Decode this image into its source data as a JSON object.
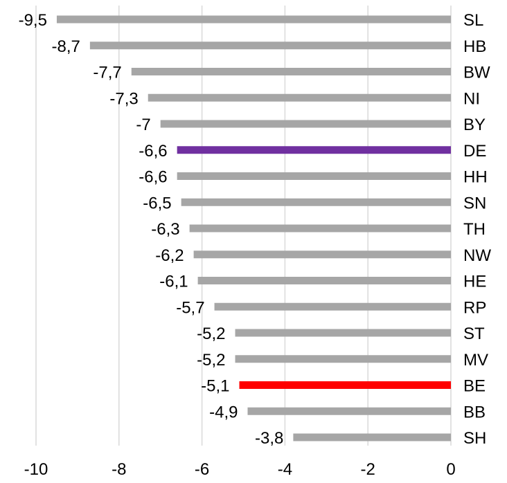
{
  "chart_data": {
    "type": "bar",
    "orientation": "horizontal",
    "categories": [
      "SL",
      "HB",
      "BW",
      "NI",
      "BY",
      "DE",
      "HH",
      "SN",
      "TH",
      "NW",
      "HE",
      "RP",
      "ST",
      "MV",
      "BE",
      "BB",
      "SH"
    ],
    "values": [
      -9.5,
      -8.7,
      -7.7,
      -7.3,
      -7.0,
      -6.6,
      -6.6,
      -6.5,
      -6.3,
      -6.2,
      -6.1,
      -5.7,
      -5.2,
      -5.2,
      -5.1,
      -4.9,
      -3.8
    ],
    "data_labels": [
      "-9,5",
      "-8,7",
      "-7,7",
      "-7,3",
      "-7",
      "-6,6",
      "-6,6",
      "-6,5",
      "-6,3",
      "-6,2",
      "-6,1",
      "-5,7",
      "-5,2",
      "-5,2",
      "-5,1",
      "-4,9",
      "-3,8"
    ],
    "x_ticks": [
      -10,
      -8,
      -6,
      -4,
      -2,
      0
    ],
    "x_tick_labels": [
      "-10",
      "-8",
      "-6",
      "-4",
      "-2",
      "0"
    ],
    "xlim": [
      -10,
      0
    ],
    "grid": "vertical",
    "colors": {
      "default": "#a6a6a6",
      "DE": "#7030a0",
      "BE": "#ff0000",
      "grid": "#d9d9d9"
    }
  }
}
